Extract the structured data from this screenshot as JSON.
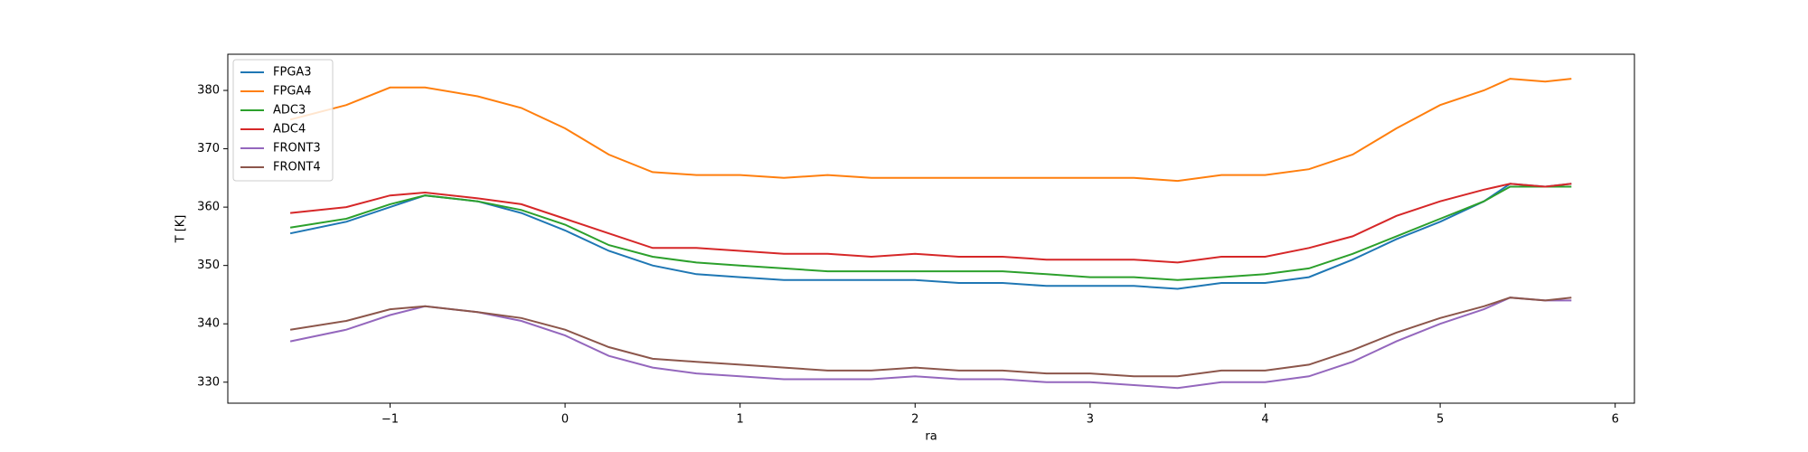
{
  "chart_data": {
    "type": "line",
    "x_label": "ra",
    "y_label": "T [K]",
    "x": [
      -1.57,
      -1.25,
      -1.0,
      -0.8,
      -0.5,
      -0.25,
      0,
      0.25,
      0.5,
      0.75,
      1.0,
      1.25,
      1.5,
      1.75,
      2.0,
      2.25,
      2.5,
      2.75,
      3.0,
      3.25,
      3.5,
      3.75,
      4.0,
      4.25,
      4.5,
      4.75,
      5.0,
      5.25,
      5.4,
      5.6,
      5.75
    ],
    "series": [
      {
        "name": "FPGA3",
        "color": "#1f77b4",
        "values": [
          355.5,
          357.5,
          360,
          362,
          361,
          359,
          356,
          352.5,
          350,
          348.5,
          348,
          347.5,
          347.5,
          347.5,
          347.5,
          347,
          347,
          346.5,
          346.5,
          346.5,
          346,
          347,
          347,
          348,
          351,
          354.5,
          357.5,
          361,
          364,
          363.5,
          364
        ]
      },
      {
        "name": "FPGA4",
        "color": "#ff7f0e",
        "values": [
          375,
          377.5,
          380.5,
          380.5,
          379,
          377,
          373.5,
          369,
          366,
          365.5,
          365.5,
          365,
          365.5,
          365,
          365,
          365,
          365,
          365,
          365,
          365,
          364.5,
          365.5,
          365.5,
          366.5,
          369,
          373.5,
          377.5,
          380,
          382,
          381.5,
          382
        ]
      },
      {
        "name": "ADC3",
        "color": "#2ca02c",
        "values": [
          356.5,
          358,
          360.5,
          362,
          361,
          359.5,
          357,
          353.5,
          351.5,
          350.5,
          350,
          349.5,
          349,
          349,
          349,
          349,
          349,
          348.5,
          348,
          348,
          347.5,
          348,
          348.5,
          349.5,
          352,
          355,
          358,
          361,
          363.5,
          363.5,
          363.5
        ]
      },
      {
        "name": "ADC4",
        "color": "#d62728",
        "values": [
          359,
          360,
          362,
          362.5,
          361.5,
          360.5,
          358,
          355.5,
          353,
          353,
          352.5,
          352,
          352,
          351.5,
          352,
          351.5,
          351.5,
          351,
          351,
          351,
          350.5,
          351.5,
          351.5,
          353,
          355,
          358.5,
          361,
          363,
          364,
          363.5,
          364
        ]
      },
      {
        "name": "FRONT3",
        "color": "#9467bd",
        "values": [
          337,
          339,
          341.5,
          343,
          342,
          340.5,
          338,
          334.5,
          332.5,
          331.5,
          331,
          330.5,
          330.5,
          330.5,
          331,
          330.5,
          330.5,
          330,
          330,
          329.5,
          329,
          330,
          330,
          331,
          333.5,
          337,
          340,
          342.5,
          344.5,
          344,
          344
        ]
      },
      {
        "name": "FRONT4",
        "color": "#8c564b",
        "values": [
          339,
          340.5,
          342.5,
          343,
          342,
          341,
          339,
          336,
          334,
          333.5,
          333,
          332.5,
          332,
          332,
          332.5,
          332,
          332,
          331.5,
          331.5,
          331,
          331,
          332,
          332,
          333,
          335.5,
          338.5,
          341,
          343,
          344.5,
          344,
          344.5
        ]
      }
    ],
    "xlim": [
      -1.927,
      6.11
    ],
    "ylim": [
      326.4,
      386.2
    ],
    "xticks": [
      {
        "value": -1,
        "label": "−1"
      },
      0,
      1,
      2,
      3,
      4,
      5,
      6
    ],
    "yticks": [
      330,
      340,
      350,
      360,
      370,
      380
    ],
    "legend": "upper left"
  }
}
